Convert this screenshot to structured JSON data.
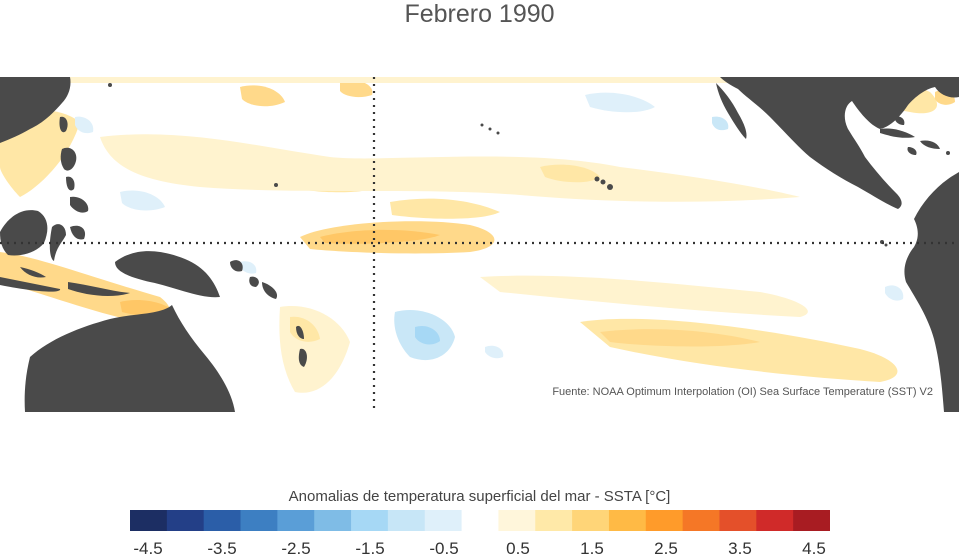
{
  "title": "Febrero 1990",
  "map": {
    "land_color": "#4a4a4a",
    "ocean_color": "#ffffff",
    "reference_lines": [
      "equator",
      "dateline"
    ],
    "source": "Fuente: NOAA Optimum Interpolation (OI) Sea Surface Temperature (SST) V2"
  },
  "colorbar": {
    "title": "Anomalias de temperatura superficial del mar - SSTA  [°C]",
    "colors": [
      "#1c2e63",
      "#233f87",
      "#2b5ea8",
      "#3d7fc2",
      "#5a9ed7",
      "#7fbce6",
      "#a6d8f5",
      "#c7e6f7",
      "#dff0fa",
      "#ffffff",
      "#fff6db",
      "#ffe9a8",
      "#ffd578",
      "#ffba45",
      "#ff9b2a",
      "#f57726",
      "#e4502a",
      "#d02a29",
      "#a81c22"
    ],
    "tick_labels": [
      "-4.5",
      "-3.5",
      "-2.5",
      "-1.5",
      "-0.5",
      "0.5",
      "1.5",
      "2.5",
      "3.5",
      "4.5"
    ]
  }
}
